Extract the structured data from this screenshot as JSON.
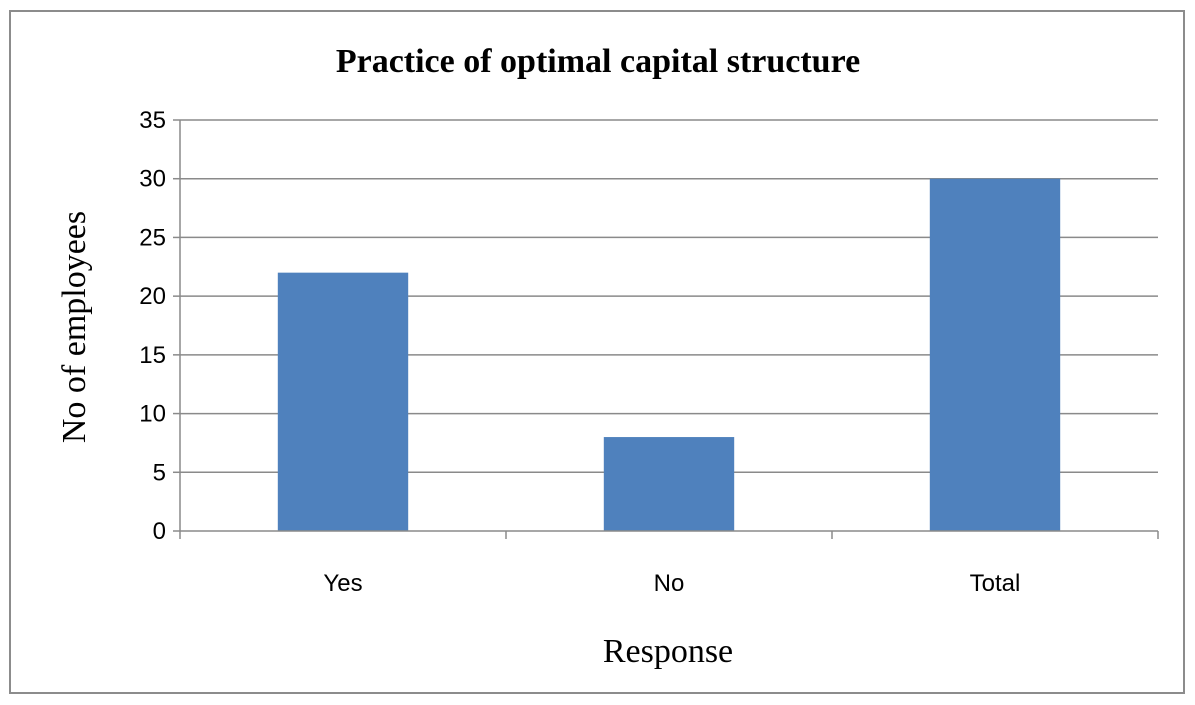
{
  "chart_data": {
    "type": "bar",
    "title": "Practice of optimal capital structure",
    "xlabel": "Response",
    "ylabel": "No of employees",
    "categories": [
      "Yes",
      "No",
      "Total"
    ],
    "values": [
      22,
      8,
      30
    ],
    "ylim": [
      0,
      35
    ],
    "yticks": [
      0,
      5,
      10,
      15,
      20,
      25,
      30,
      35
    ],
    "grid": true,
    "legend": "none",
    "bar_color": "#4f81bd"
  }
}
